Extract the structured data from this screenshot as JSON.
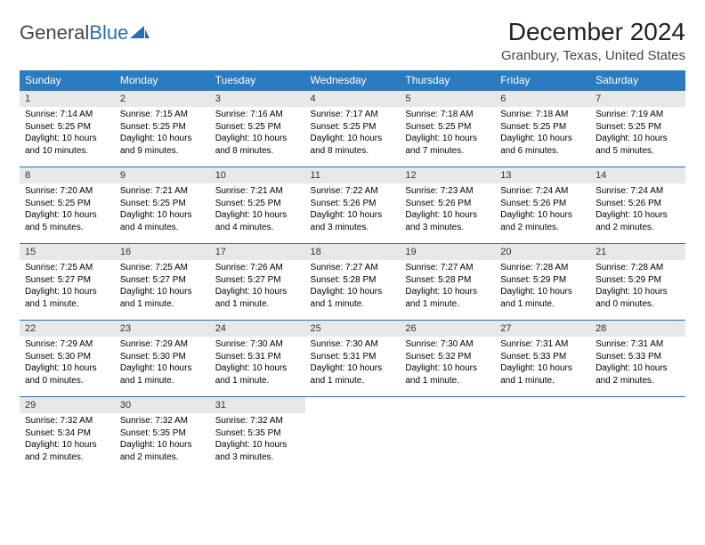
{
  "logo": {
    "word1": "General",
    "word2": "Blue"
  },
  "title": "December 2024",
  "subtitle": "Granbury, Texas, United States",
  "colors": {
    "header_bg": "#2a7bbf",
    "header_fg": "#ffffff",
    "rule": "#2a6db5",
    "daynum_bg": "#e8e8e8",
    "logo_blue": "#2a6db5",
    "text": "#000000"
  },
  "weekdays": [
    "Sunday",
    "Monday",
    "Tuesday",
    "Wednesday",
    "Thursday",
    "Friday",
    "Saturday"
  ],
  "weeks": [
    [
      {
        "n": "1",
        "sr": "Sunrise: 7:14 AM",
        "ss": "Sunset: 5:25 PM",
        "dl": "Daylight: 10 hours and 10 minutes."
      },
      {
        "n": "2",
        "sr": "Sunrise: 7:15 AM",
        "ss": "Sunset: 5:25 PM",
        "dl": "Daylight: 10 hours and 9 minutes."
      },
      {
        "n": "3",
        "sr": "Sunrise: 7:16 AM",
        "ss": "Sunset: 5:25 PM",
        "dl": "Daylight: 10 hours and 8 minutes."
      },
      {
        "n": "4",
        "sr": "Sunrise: 7:17 AM",
        "ss": "Sunset: 5:25 PM",
        "dl": "Daylight: 10 hours and 8 minutes."
      },
      {
        "n": "5",
        "sr": "Sunrise: 7:18 AM",
        "ss": "Sunset: 5:25 PM",
        "dl": "Daylight: 10 hours and 7 minutes."
      },
      {
        "n": "6",
        "sr": "Sunrise: 7:18 AM",
        "ss": "Sunset: 5:25 PM",
        "dl": "Daylight: 10 hours and 6 minutes."
      },
      {
        "n": "7",
        "sr": "Sunrise: 7:19 AM",
        "ss": "Sunset: 5:25 PM",
        "dl": "Daylight: 10 hours and 5 minutes."
      }
    ],
    [
      {
        "n": "8",
        "sr": "Sunrise: 7:20 AM",
        "ss": "Sunset: 5:25 PM",
        "dl": "Daylight: 10 hours and 5 minutes."
      },
      {
        "n": "9",
        "sr": "Sunrise: 7:21 AM",
        "ss": "Sunset: 5:25 PM",
        "dl": "Daylight: 10 hours and 4 minutes."
      },
      {
        "n": "10",
        "sr": "Sunrise: 7:21 AM",
        "ss": "Sunset: 5:25 PM",
        "dl": "Daylight: 10 hours and 4 minutes."
      },
      {
        "n": "11",
        "sr": "Sunrise: 7:22 AM",
        "ss": "Sunset: 5:26 PM",
        "dl": "Daylight: 10 hours and 3 minutes."
      },
      {
        "n": "12",
        "sr": "Sunrise: 7:23 AM",
        "ss": "Sunset: 5:26 PM",
        "dl": "Daylight: 10 hours and 3 minutes."
      },
      {
        "n": "13",
        "sr": "Sunrise: 7:24 AM",
        "ss": "Sunset: 5:26 PM",
        "dl": "Daylight: 10 hours and 2 minutes."
      },
      {
        "n": "14",
        "sr": "Sunrise: 7:24 AM",
        "ss": "Sunset: 5:26 PM",
        "dl": "Daylight: 10 hours and 2 minutes."
      }
    ],
    [
      {
        "n": "15",
        "sr": "Sunrise: 7:25 AM",
        "ss": "Sunset: 5:27 PM",
        "dl": "Daylight: 10 hours and 1 minute."
      },
      {
        "n": "16",
        "sr": "Sunrise: 7:25 AM",
        "ss": "Sunset: 5:27 PM",
        "dl": "Daylight: 10 hours and 1 minute."
      },
      {
        "n": "17",
        "sr": "Sunrise: 7:26 AM",
        "ss": "Sunset: 5:27 PM",
        "dl": "Daylight: 10 hours and 1 minute."
      },
      {
        "n": "18",
        "sr": "Sunrise: 7:27 AM",
        "ss": "Sunset: 5:28 PM",
        "dl": "Daylight: 10 hours and 1 minute."
      },
      {
        "n": "19",
        "sr": "Sunrise: 7:27 AM",
        "ss": "Sunset: 5:28 PM",
        "dl": "Daylight: 10 hours and 1 minute."
      },
      {
        "n": "20",
        "sr": "Sunrise: 7:28 AM",
        "ss": "Sunset: 5:29 PM",
        "dl": "Daylight: 10 hours and 1 minute."
      },
      {
        "n": "21",
        "sr": "Sunrise: 7:28 AM",
        "ss": "Sunset: 5:29 PM",
        "dl": "Daylight: 10 hours and 0 minutes."
      }
    ],
    [
      {
        "n": "22",
        "sr": "Sunrise: 7:29 AM",
        "ss": "Sunset: 5:30 PM",
        "dl": "Daylight: 10 hours and 0 minutes."
      },
      {
        "n": "23",
        "sr": "Sunrise: 7:29 AM",
        "ss": "Sunset: 5:30 PM",
        "dl": "Daylight: 10 hours and 1 minute."
      },
      {
        "n": "24",
        "sr": "Sunrise: 7:30 AM",
        "ss": "Sunset: 5:31 PM",
        "dl": "Daylight: 10 hours and 1 minute."
      },
      {
        "n": "25",
        "sr": "Sunrise: 7:30 AM",
        "ss": "Sunset: 5:31 PM",
        "dl": "Daylight: 10 hours and 1 minute."
      },
      {
        "n": "26",
        "sr": "Sunrise: 7:30 AM",
        "ss": "Sunset: 5:32 PM",
        "dl": "Daylight: 10 hours and 1 minute."
      },
      {
        "n": "27",
        "sr": "Sunrise: 7:31 AM",
        "ss": "Sunset: 5:33 PM",
        "dl": "Daylight: 10 hours and 1 minute."
      },
      {
        "n": "28",
        "sr": "Sunrise: 7:31 AM",
        "ss": "Sunset: 5:33 PM",
        "dl": "Daylight: 10 hours and 2 minutes."
      }
    ],
    [
      {
        "n": "29",
        "sr": "Sunrise: 7:32 AM",
        "ss": "Sunset: 5:34 PM",
        "dl": "Daylight: 10 hours and 2 minutes."
      },
      {
        "n": "30",
        "sr": "Sunrise: 7:32 AM",
        "ss": "Sunset: 5:35 PM",
        "dl": "Daylight: 10 hours and 2 minutes."
      },
      {
        "n": "31",
        "sr": "Sunrise: 7:32 AM",
        "ss": "Sunset: 5:35 PM",
        "dl": "Daylight: 10 hours and 3 minutes."
      },
      {
        "empty": true
      },
      {
        "empty": true
      },
      {
        "empty": true
      },
      {
        "empty": true
      }
    ]
  ]
}
